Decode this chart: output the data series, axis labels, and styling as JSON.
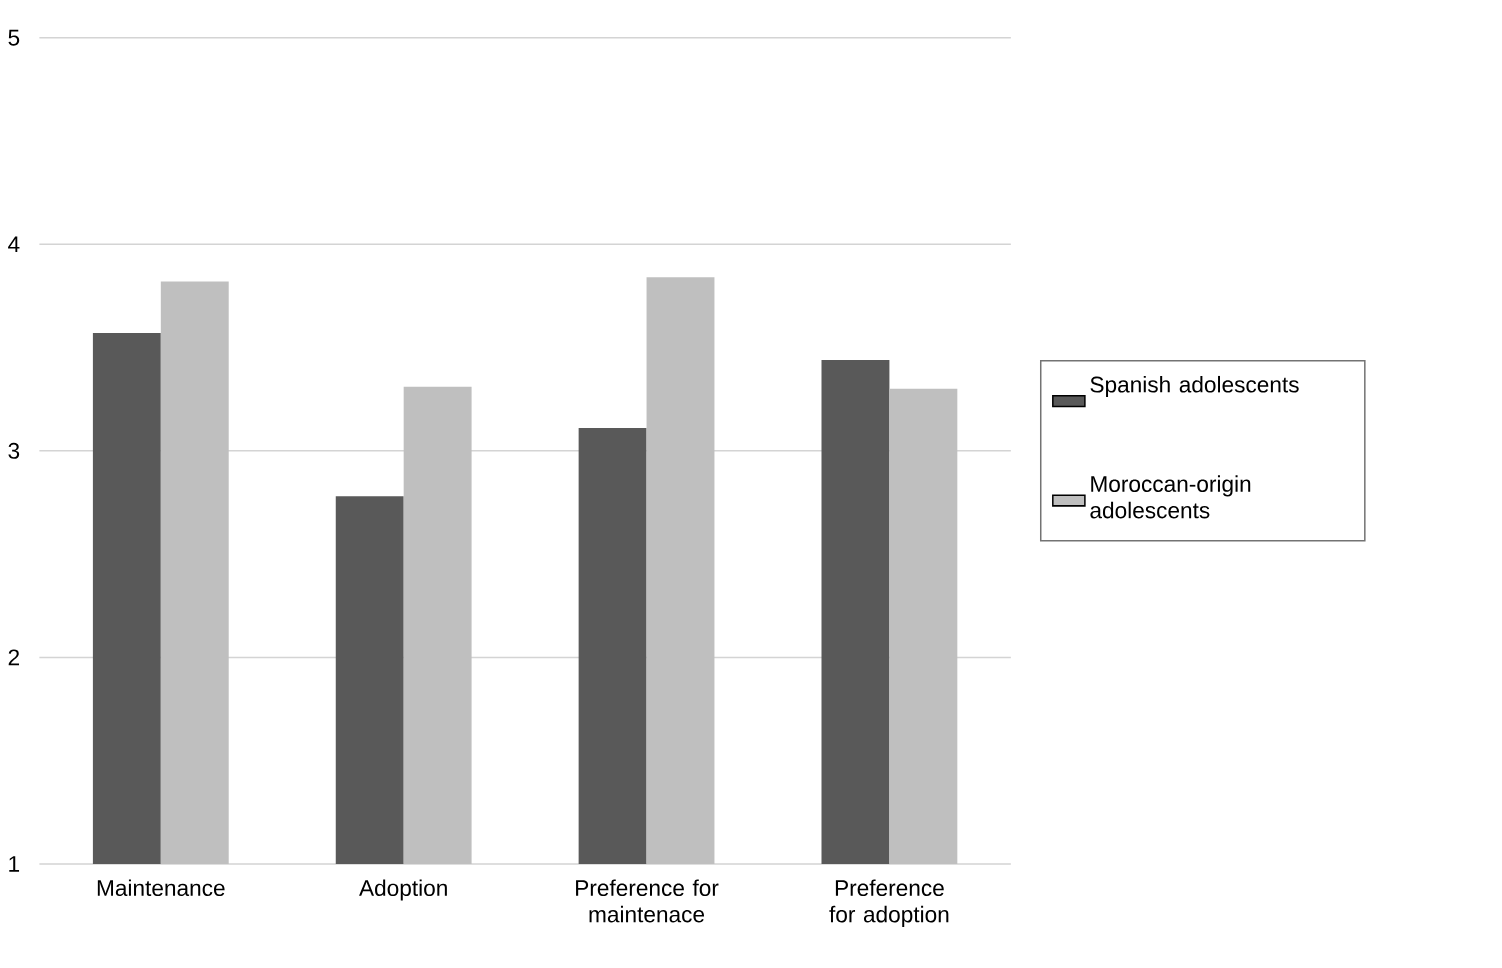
{
  "chart_data": {
    "type": "bar",
    "categories": [
      "Maintenance",
      "Adoption",
      "Preference for maintenace",
      "Preference for adoption"
    ],
    "series": [
      {
        "name": "Spanish adolescents",
        "color": "#595959",
        "values": [
          3.57,
          2.78,
          3.11,
          3.44
        ]
      },
      {
        "name": "Moroccan-origin adolescents",
        "color": "#bfbfbf",
        "values": [
          3.82,
          3.31,
          3.84,
          3.3
        ]
      }
    ],
    "ylim": [
      1,
      5
    ],
    "yticks": [
      1,
      2,
      3,
      4,
      5
    ],
    "grid": "y",
    "legend": "right"
  }
}
